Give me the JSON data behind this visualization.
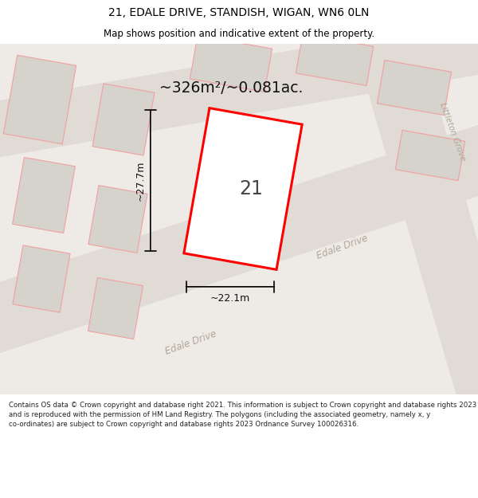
{
  "title_line1": "21, EDALE DRIVE, STANDISH, WIGAN, WN6 0LN",
  "title_line2": "Map shows position and indicative extent of the property.",
  "area_text": "~326m²/~0.081ac.",
  "label_number": "21",
  "dim_width": "~22.1m",
  "dim_height": "~27.7m",
  "road_label_edale1": "Edale Drive",
  "road_label_edale2": "Edale Drive",
  "road_label_littleton": "Littleton Grove",
  "footer": "Contains OS data © Crown copyright and database right 2021. This information is subject to Crown copyright and database rights 2023 and is reproduced with the permission of HM Land Registry. The polygons (including the associated geometry, namely x, y co-ordinates) are subject to Crown copyright and database rights 2023 Ordnance Survey 100026316.",
  "map_bg": "#eeebe6",
  "road_fill": "#e0dbd4",
  "block_fill": "#d6d2cc",
  "block_edge": "#f0a0a0",
  "plot_fill": "#ffffff",
  "plot_edge": "#ff0000",
  "road_text": "#b0a898",
  "dim_color": "#111111",
  "area_color": "#111111",
  "label_color": "#444444",
  "footer_color": "#222222",
  "title_color": "#000000",
  "footer_bg": "#ffffff",
  "title_bg": "#ffffff"
}
